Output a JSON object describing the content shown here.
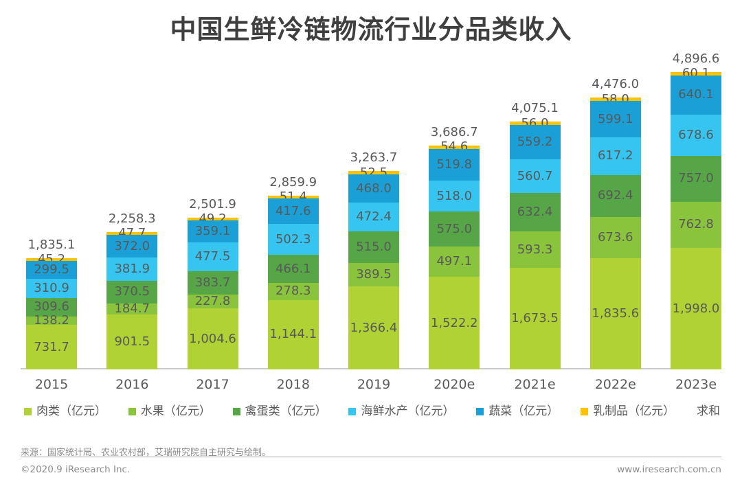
{
  "title": "中国生鲜冷链物流行业分品类收入",
  "chart_data": {
    "type": "bar",
    "stacked": true,
    "unit": "亿元",
    "legend_position": "bottom",
    "value_labels": true,
    "grid": false,
    "categories": [
      "2015",
      "2016",
      "2017",
      "2018",
      "2019",
      "2020e",
      "2021e",
      "2022e",
      "2023e"
    ],
    "series": [
      {
        "name": "肉类（亿元）",
        "key": "meat",
        "color": "#b1d235",
        "values": [
          731.7,
          901.5,
          1004.6,
          1144.1,
          1366.4,
          1522.2,
          1673.5,
          1835.6,
          1998.0
        ]
      },
      {
        "name": "水果（亿元）",
        "key": "fruit",
        "color": "#8ac43d",
        "values": [
          138.2,
          184.7,
          227.8,
          278.3,
          389.5,
          497.1,
          593.3,
          673.6,
          762.8
        ]
      },
      {
        "name": "禽蛋类（亿元）",
        "key": "poultry-egg",
        "color": "#56a546",
        "values": [
          309.6,
          370.5,
          383.7,
          466.1,
          515.0,
          575.0,
          632.4,
          692.4,
          757.0
        ]
      },
      {
        "name": "海鲜水产（亿元）",
        "key": "seafood",
        "color": "#35c5f0",
        "values": [
          310.9,
          381.9,
          477.5,
          502.3,
          472.4,
          518.0,
          560.7,
          617.2,
          678.6
        ]
      },
      {
        "name": "蔬菜（亿元）",
        "key": "vegetable",
        "color": "#1aa0d7",
        "values": [
          299.5,
          372.0,
          359.1,
          417.6,
          468.0,
          519.8,
          559.2,
          599.1,
          640.1
        ]
      },
      {
        "name": "乳制品（亿元）",
        "key": "dairy",
        "color": "#fdc300",
        "values": [
          45.2,
          47.7,
          49.2,
          51.4,
          52.5,
          54.6,
          56.0,
          58.0,
          60.1
        ]
      }
    ],
    "totals": [
      1835.1,
      2258.3,
      2501.9,
      2859.9,
      3263.7,
      3686.7,
      4075.1,
      4476.0,
      4896.6
    ],
    "totals_legend_label": "求和"
  },
  "colors": {
    "title_text": "#3f3f3f",
    "value_text": "#595959",
    "axis_line": "#c9c9c9",
    "footer_text": "#8c8c8c"
  },
  "footer": {
    "source": "来源：国家统计局、农业农村部，艾瑞研究院自主研究与绘制。",
    "copyright": "©2020.9 iResearch Inc.",
    "website": "www.iresearch.com.cn"
  }
}
